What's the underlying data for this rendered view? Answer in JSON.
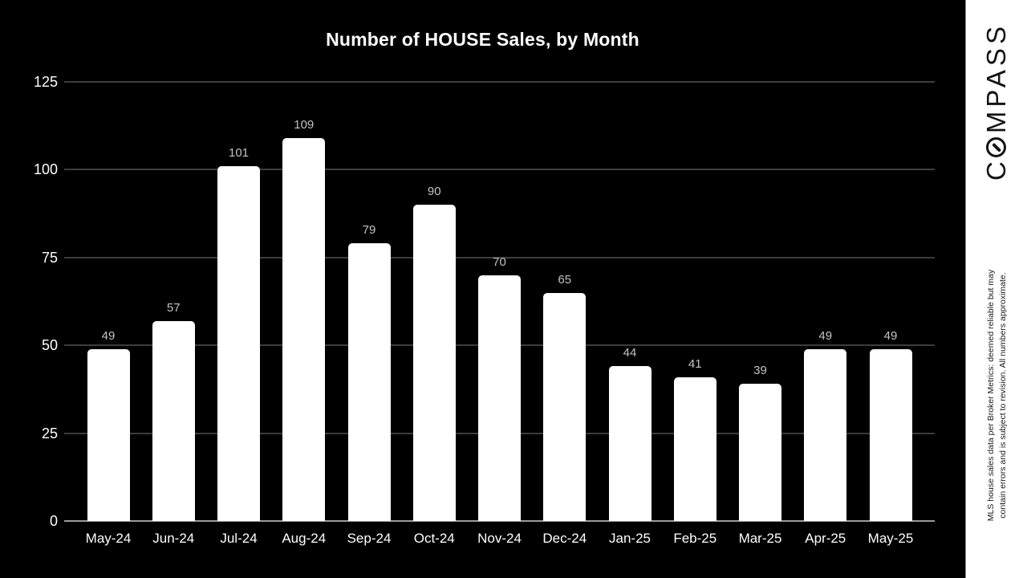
{
  "branding": {
    "logo_prefix": "C",
    "logo_suffix": "MPASS",
    "panel_bg": "#ffffff",
    "logo_color": "#141414"
  },
  "disclaimer": {
    "line1": "MLS house sales data per Broker Metrics: deemed reliable but may",
    "line2": "contain errors and is subject to revision. All numbers approximate."
  },
  "chart_data": {
    "type": "bar",
    "title": "Number of HOUSE Sales, by Month",
    "categories": [
      "May-24",
      "Jun-24",
      "Jul-24",
      "Aug-24",
      "Sep-24",
      "Oct-24",
      "Nov-24",
      "Dec-24",
      "Jan-25",
      "Feb-25",
      "Mar-25",
      "Apr-25",
      "May-25"
    ],
    "values": [
      49,
      57,
      101,
      109,
      79,
      90,
      70,
      65,
      44,
      41,
      39,
      49,
      49
    ],
    "yticks": [
      0,
      25,
      50,
      75,
      100,
      125
    ],
    "ylim": [
      0,
      125
    ],
    "xlabel": "",
    "ylabel": "",
    "legend": "none",
    "grid": true,
    "background_color": "#000000",
    "bar_color": "#ffffff",
    "title_color": "#ffffff",
    "tick_label_color": "#ffffff",
    "value_label_color": "#c2c2c2",
    "grid_color": "#3d3d3d",
    "zero_axis_color": "#9c9c9c"
  }
}
